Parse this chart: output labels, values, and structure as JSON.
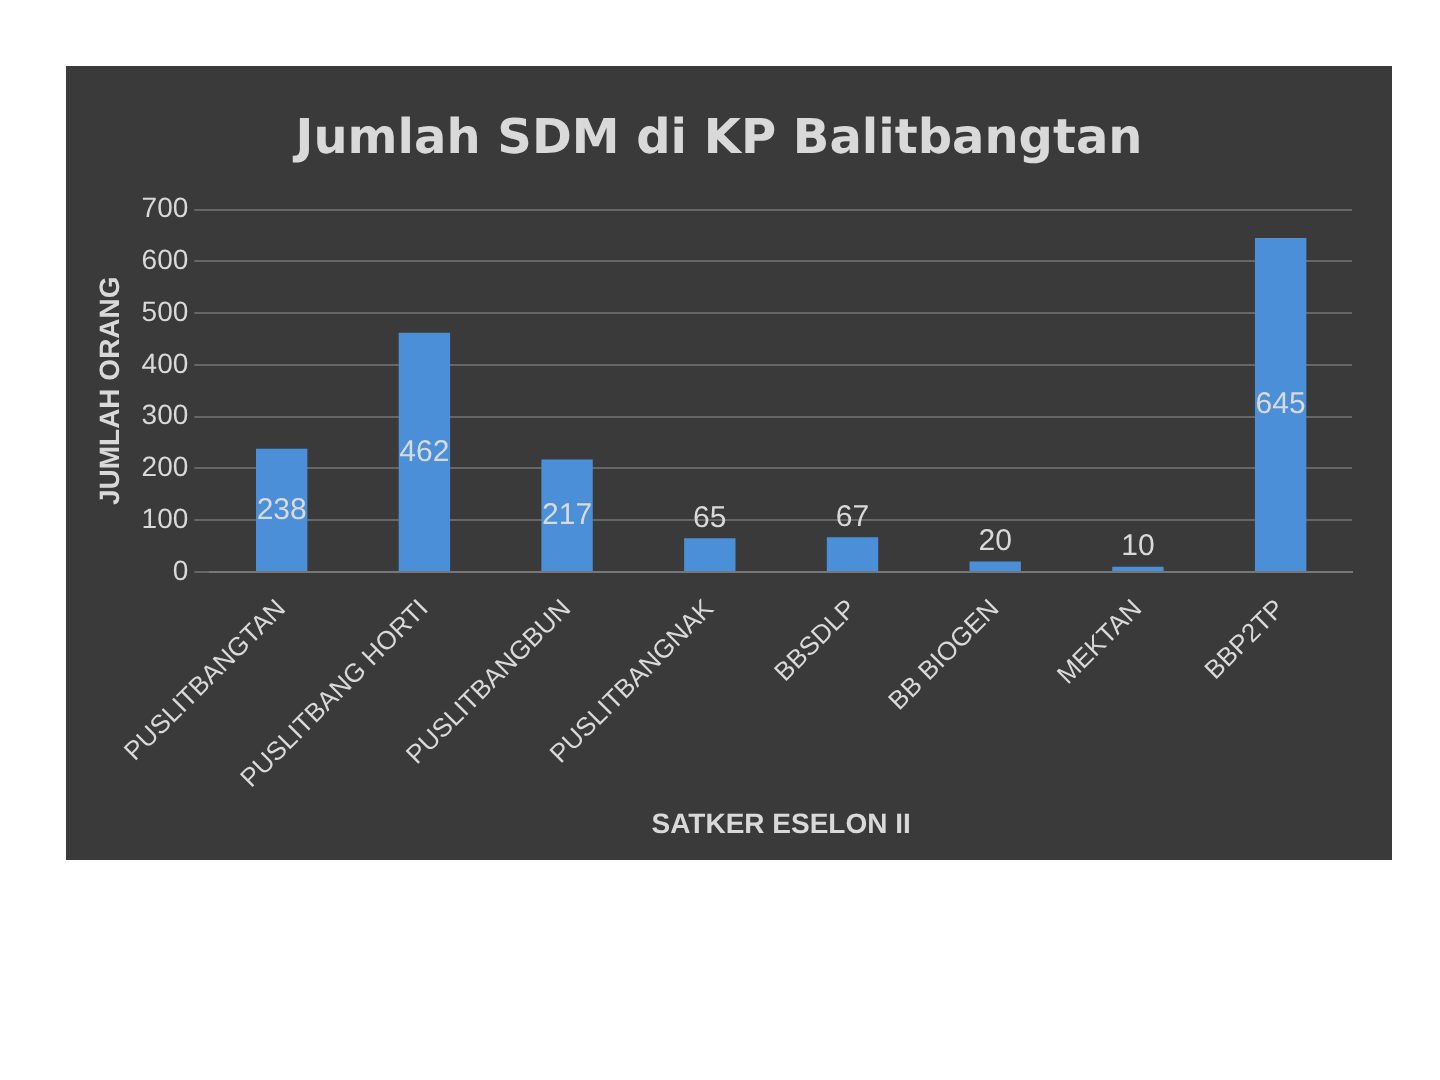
{
  "chart_data": {
    "type": "bar",
    "title": "Jumlah SDM di KP Balitbangtan",
    "xlabel": "SATKER ESELON II",
    "ylabel": "JUMLAH ORANG",
    "categories": [
      "PUSLITBANGTAN",
      "PUSLITBANG HORTI",
      "PUSLITBANGBUN",
      "PUSLITBANGNAK",
      "BBSDLP",
      "BB BIOGEN",
      "MEKTAN",
      "BBP2TP"
    ],
    "values": [
      238,
      462,
      217,
      65,
      67,
      20,
      10,
      645
    ],
    "color": "#4a8fd8",
    "ylim": [
      0,
      700
    ],
    "yticks": [
      0,
      100,
      200,
      300,
      400,
      500,
      600,
      700
    ],
    "grid": "y",
    "data_labels": true
  }
}
